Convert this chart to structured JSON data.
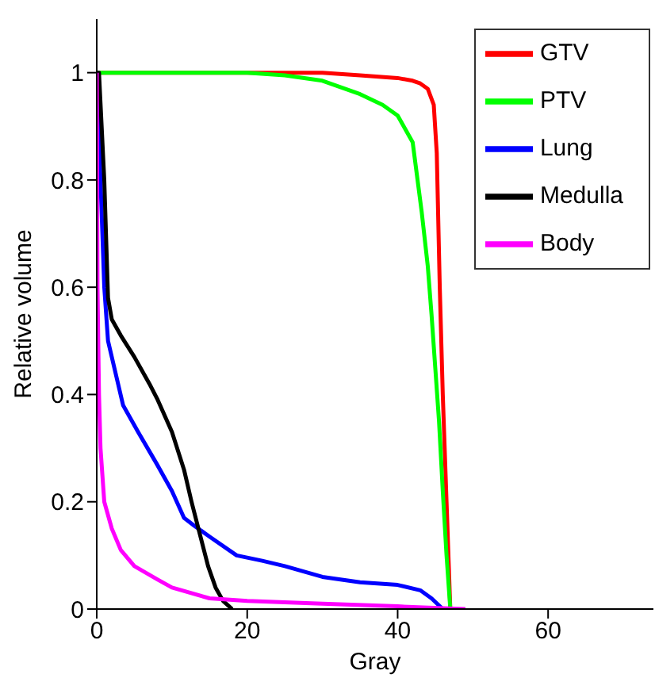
{
  "chart_data": {
    "type": "line",
    "xlabel": "Gray",
    "ylabel": "Relative volume",
    "xlim": [
      0,
      74
    ],
    "ylim": [
      0,
      1.1
    ],
    "xticks": [
      0,
      20,
      40,
      60
    ],
    "yticks": [
      0,
      0.2,
      0.4,
      0.6,
      0.8,
      1
    ],
    "grid": false,
    "legend": "top right",
    "marker": "none",
    "line_style": "solid",
    "series": [
      {
        "name": "GTV",
        "color": "#ff0000",
        "x": [
          0,
          20,
          30,
          35,
          40,
          42,
          43,
          44,
          44.8,
          45.2,
          45.6,
          46,
          46.5,
          47
        ],
        "values": [
          1,
          1,
          1,
          0.995,
          0.99,
          0.985,
          0.98,
          0.97,
          0.94,
          0.85,
          0.6,
          0.4,
          0.2,
          0
        ]
      },
      {
        "name": "PTV",
        "color": "#00ff00",
        "x": [
          0,
          20,
          25,
          30,
          35,
          38,
          40,
          42,
          43.2,
          44,
          44.5,
          45,
          45.5,
          46,
          46.5,
          47
        ],
        "values": [
          1,
          1,
          0.995,
          0.985,
          0.96,
          0.94,
          0.92,
          0.87,
          0.74,
          0.64,
          0.55,
          0.45,
          0.35,
          0.22,
          0.1,
          0
        ]
      },
      {
        "name": "Lung",
        "color": "#0000ff",
        "x": [
          0,
          0.5,
          1,
          1.5,
          3.5,
          5.5,
          8,
          10,
          11.6,
          13,
          15,
          18.6,
          22,
          25,
          30,
          35,
          40,
          43,
          44.5,
          46
        ],
        "values": [
          1,
          0.8,
          0.6,
          0.5,
          0.38,
          0.33,
          0.27,
          0.22,
          0.17,
          0.155,
          0.135,
          0.1,
          0.09,
          0.08,
          0.06,
          0.05,
          0.045,
          0.035,
          0.02,
          0
        ]
      },
      {
        "name": "Medulla",
        "color": "#000000",
        "x": [
          0,
          0.3,
          1,
          1.5,
          2,
          3.2,
          5,
          7,
          8.1,
          10,
          11.6,
          12.6,
          13.7,
          14.8,
          15.8,
          16.8,
          18
        ],
        "values": [
          1,
          1,
          0.8,
          0.58,
          0.54,
          0.51,
          0.47,
          0.42,
          0.39,
          0.33,
          0.26,
          0.2,
          0.14,
          0.08,
          0.04,
          0.015,
          0
        ]
      },
      {
        "name": "Body",
        "color": "#ff00ff",
        "x": [
          0,
          0.1,
          0.3,
          0.5,
          1,
          2,
          3.2,
          5,
          8.1,
          10,
          15,
          20,
          30,
          40,
          49
        ],
        "values": [
          1,
          0.6,
          0.4,
          0.3,
          0.2,
          0.15,
          0.11,
          0.08,
          0.055,
          0.04,
          0.02,
          0.015,
          0.01,
          0.005,
          0
        ]
      }
    ]
  }
}
